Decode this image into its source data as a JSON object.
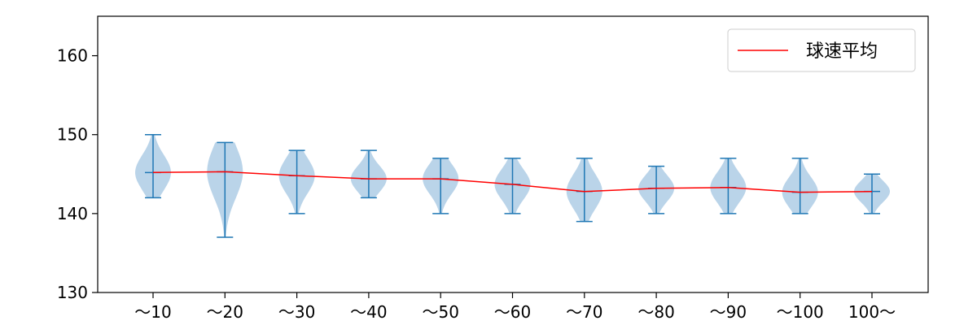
{
  "chart_data": {
    "type": "violin",
    "title": "",
    "xlabel": "",
    "ylabel": "",
    "ylim": [
      130,
      165
    ],
    "yticks": [
      130,
      140,
      150,
      160
    ],
    "categories": [
      "～10",
      "～20",
      "～30",
      "～40",
      "～50",
      "～60",
      "～70",
      "～80",
      "～90",
      "～100",
      "100～"
    ],
    "violins": [
      {
        "min": 142,
        "max": 150,
        "mean": 145.2
      },
      {
        "min": 137,
        "max": 149,
        "mean": 145.3
      },
      {
        "min": 140,
        "max": 148,
        "mean": 144.8
      },
      {
        "min": 142,
        "max": 148,
        "mean": 144.4
      },
      {
        "min": 140,
        "max": 147,
        "mean": 144.4
      },
      {
        "min": 140,
        "max": 147,
        "mean": 143.7
      },
      {
        "min": 139,
        "max": 147,
        "mean": 142.8
      },
      {
        "min": 140,
        "max": 146,
        "mean": 143.2
      },
      {
        "min": 140,
        "max": 147,
        "mean": 143.3
      },
      {
        "min": 140,
        "max": 147,
        "mean": 142.7
      },
      {
        "min": 140,
        "max": 145,
        "mean": 142.8
      }
    ],
    "series": [
      {
        "name": "球速平均",
        "type": "line",
        "color": "#ff0000"
      }
    ],
    "legend": {
      "position": "top-right",
      "entries": [
        "球速平均"
      ]
    },
    "grid": false,
    "colors": {
      "violin_fill": "#b6d2e8",
      "violin_lines": "#1f77b4",
      "mean_line": "#ff0000"
    }
  }
}
